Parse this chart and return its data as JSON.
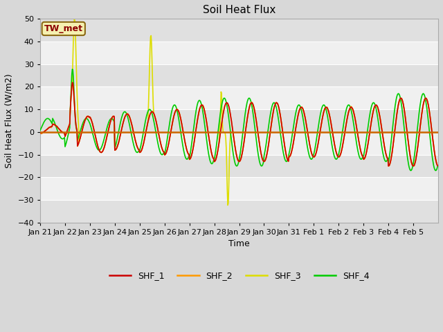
{
  "title": "Soil Heat Flux",
  "xlabel": "Time",
  "ylabel": "Soil Heat Flux (W/m2)",
  "ylim": [
    -40,
    50
  ],
  "n_days": 16,
  "tick_labels": [
    "Jan 21",
    "Jan 22",
    "Jan 23",
    "Jan 24",
    "Jan 25",
    "Jan 26",
    "Jan 27",
    "Jan 28",
    "Jan 29",
    "Jan 30",
    "Jan 31",
    "Feb 1",
    "Feb 2",
    "Feb 3",
    "Feb 4",
    "Feb 5"
  ],
  "annotation_text": "TW_met",
  "annotation_color": "#8B0000",
  "annotation_bg": "#f5f0b0",
  "annotation_border": "#8B6914",
  "line_colors": {
    "SHF_1": "#cc0000",
    "SHF_2": "#ff9900",
    "SHF_3": "#dddd00",
    "SHF_4": "#00cc00"
  },
  "hline_color": "#cc6600",
  "bg_color": "#d8d8d8",
  "plot_bg_light": "#f0f0f0",
  "plot_bg_dark": "#e0e0e0",
  "grid_color": "#ffffff",
  "title_fontsize": 11,
  "axis_label_fontsize": 9,
  "tick_fontsize": 8,
  "legend_fontsize": 9
}
